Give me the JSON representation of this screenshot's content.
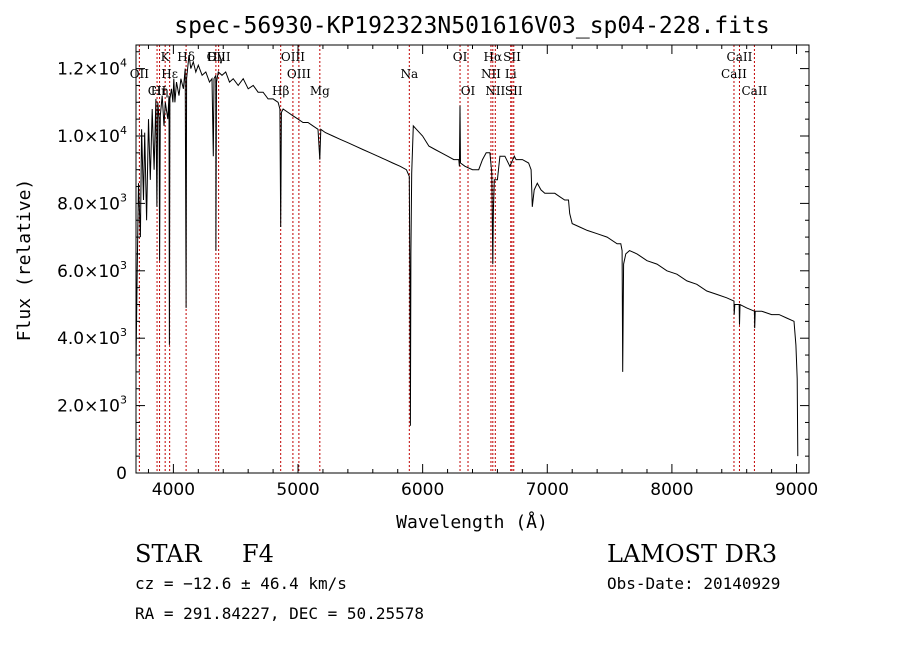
{
  "chart_data": {
    "type": "line",
    "title": "spec-56930-KP192323N501616V03_sp04-228.fits",
    "xlabel": "Wavelength (Å)",
    "ylabel": "Flux (relative)",
    "xlim": [
      3700,
      9100
    ],
    "ylim": [
      0,
      12700
    ],
    "x_ticks": [
      4000,
      5000,
      6000,
      7000,
      8000,
      9000
    ],
    "x_tick_labels": [
      "4000",
      "5000",
      "6000",
      "7000",
      "8000",
      "9000"
    ],
    "y_ticks": [
      0,
      2000,
      4000,
      6000,
      8000,
      10000,
      12000
    ],
    "y_tick_labels": [
      {
        "mant": "0",
        "exp": ""
      },
      {
        "mant": "2.0×10",
        "exp": "3"
      },
      {
        "mant": "4.0×10",
        "exp": "3"
      },
      {
        "mant": "6.0×10",
        "exp": "3"
      },
      {
        "mant": "8.0×10",
        "exp": "3"
      },
      {
        "mant": "1.0×10",
        "exp": "4"
      },
      {
        "mant": "1.2×10",
        "exp": "4"
      }
    ],
    "series": [
      {
        "name": "spectrum",
        "points": [
          [
            3700,
            3200
          ],
          [
            3710,
            6000
          ],
          [
            3720,
            8600
          ],
          [
            3735,
            7000
          ],
          [
            3745,
            10200
          ],
          [
            3760,
            8100
          ],
          [
            3770,
            10100
          ],
          [
            3785,
            7500
          ],
          [
            3800,
            10500
          ],
          [
            3815,
            8700
          ],
          [
            3830,
            10800
          ],
          [
            3845,
            9000
          ],
          [
            3860,
            11100
          ],
          [
            3868,
            7900
          ],
          [
            3875,
            11000
          ],
          [
            3885,
            10500
          ],
          [
            3889,
            6300
          ],
          [
            3895,
            10600
          ],
          [
            3910,
            11200
          ],
          [
            3925,
            10300
          ],
          [
            3935,
            11000
          ],
          [
            3955,
            10500
          ],
          [
            3965,
            11200
          ],
          [
            3968,
            3800
          ],
          [
            3972,
            11100
          ],
          [
            3985,
            11400
          ],
          [
            3996,
            11000
          ],
          [
            4003,
            11700
          ],
          [
            4012,
            11000
          ],
          [
            4025,
            11600
          ],
          [
            4045,
            11200
          ],
          [
            4060,
            11700
          ],
          [
            4080,
            11400
          ],
          [
            4095,
            12000
          ],
          [
            4102,
            4900
          ],
          [
            4106,
            11700
          ],
          [
            4125,
            12400
          ],
          [
            4140,
            12000
          ],
          [
            4160,
            12200
          ],
          [
            4180,
            11900
          ],
          [
            4200,
            12100
          ],
          [
            4230,
            11800
          ],
          [
            4260,
            11900
          ],
          [
            4290,
            11600
          ],
          [
            4310,
            11700
          ],
          [
            4320,
            9400
          ],
          [
            4326,
            11700
          ],
          [
            4340,
            11800
          ],
          [
            4341,
            6600
          ],
          [
            4346,
            11600
          ],
          [
            4360,
            11900
          ],
          [
            4390,
            11800
          ],
          [
            4420,
            11900
          ],
          [
            4450,
            11600
          ],
          [
            4480,
            11700
          ],
          [
            4520,
            11500
          ],
          [
            4560,
            11700
          ],
          [
            4600,
            11400
          ],
          [
            4640,
            11500
          ],
          [
            4680,
            11300
          ],
          [
            4720,
            11300
          ],
          [
            4760,
            11100
          ],
          [
            4800,
            11100
          ],
          [
            4840,
            11000
          ],
          [
            4855,
            10800
          ],
          [
            4861,
            7300
          ],
          [
            4867,
            10700
          ],
          [
            4880,
            10800
          ],
          [
            4920,
            10700
          ],
          [
            4960,
            10600
          ],
          [
            5000,
            10500
          ],
          [
            5040,
            10400
          ],
          [
            5080,
            10400
          ],
          [
            5120,
            10300
          ],
          [
            5160,
            10200
          ],
          [
            5175,
            9300
          ],
          [
            5183,
            10200
          ],
          [
            5220,
            10100
          ],
          [
            5280,
            10000
          ],
          [
            5340,
            9900
          ],
          [
            5400,
            9800
          ],
          [
            5460,
            9700
          ],
          [
            5520,
            9600
          ],
          [
            5580,
            9500
          ],
          [
            5640,
            9400
          ],
          [
            5700,
            9300
          ],
          [
            5760,
            9200
          ],
          [
            5820,
            9100
          ],
          [
            5870,
            9000
          ],
          [
            5893,
            8800
          ],
          [
            5898,
            5700
          ],
          [
            5902,
            1400
          ],
          [
            5906,
            6500
          ],
          [
            5912,
            8900
          ],
          [
            5925,
            10300
          ],
          [
            5950,
            10200
          ],
          [
            6000,
            10000
          ],
          [
            6050,
            9700
          ],
          [
            6100,
            9600
          ],
          [
            6150,
            9500
          ],
          [
            6200,
            9400
          ],
          [
            6250,
            9300
          ],
          [
            6290,
            9300
          ],
          [
            6295,
            9100
          ],
          [
            6300,
            10900
          ],
          [
            6304,
            9200
          ],
          [
            6340,
            9100
          ],
          [
            6400,
            9000
          ],
          [
            6450,
            9000
          ],
          [
            6480,
            9300
          ],
          [
            6510,
            9500
          ],
          [
            6540,
            9500
          ],
          [
            6555,
            8900
          ],
          [
            6563,
            6200
          ],
          [
            6568,
            7800
          ],
          [
            6575,
            8700
          ],
          [
            6600,
            8700
          ],
          [
            6620,
            9400
          ],
          [
            6660,
            9400
          ],
          [
            6700,
            9100
          ],
          [
            6735,
            9400
          ],
          [
            6750,
            9300
          ],
          [
            6800,
            9300
          ],
          [
            6850,
            9200
          ],
          [
            6870,
            9000
          ],
          [
            6880,
            7900
          ],
          [
            6895,
            8400
          ],
          [
            6920,
            8600
          ],
          [
            6950,
            8400
          ],
          [
            6980,
            8300
          ],
          [
            7020,
            8300
          ],
          [
            7060,
            8300
          ],
          [
            7100,
            8200
          ],
          [
            7140,
            8100
          ],
          [
            7170,
            8100
          ],
          [
            7180,
            7700
          ],
          [
            7200,
            7400
          ],
          [
            7260,
            7300
          ],
          [
            7320,
            7200
          ],
          [
            7400,
            7100
          ],
          [
            7480,
            7000
          ],
          [
            7560,
            6800
          ],
          [
            7590,
            6800
          ],
          [
            7600,
            6600
          ],
          [
            7605,
            3000
          ],
          [
            7612,
            6200
          ],
          [
            7630,
            6500
          ],
          [
            7660,
            6600
          ],
          [
            7720,
            6500
          ],
          [
            7800,
            6300
          ],
          [
            7880,
            6200
          ],
          [
            7960,
            6000
          ],
          [
            8040,
            5900
          ],
          [
            8120,
            5700
          ],
          [
            8200,
            5600
          ],
          [
            8280,
            5400
          ],
          [
            8360,
            5300
          ],
          [
            8440,
            5200
          ],
          [
            8498,
            5100
          ],
          [
            8500,
            4700
          ],
          [
            8505,
            5000
          ],
          [
            8540,
            5000
          ],
          [
            8542,
            4400
          ],
          [
            8546,
            5000
          ],
          [
            8600,
            4900
          ],
          [
            8662,
            4800
          ],
          [
            8664,
            4300
          ],
          [
            8668,
            4800
          ],
          [
            8720,
            4800
          ],
          [
            8800,
            4700
          ],
          [
            8860,
            4700
          ],
          [
            8920,
            4600
          ],
          [
            8980,
            4500
          ],
          [
            8995,
            3800
          ],
          [
            9005,
            2800
          ],
          [
            9010,
            500
          ]
        ]
      }
    ],
    "lines": [
      {
        "name": "Hδ",
        "wave": 4102,
        "row": 1
      },
      {
        "name": "K",
        "wave": 3934,
        "row": 1
      },
      {
        "name": "Hγ",
        "wave": 4341,
        "row": 1
      },
      {
        "name": "OIII",
        "wave": 4363,
        "row": 1
      },
      {
        "name": "OII",
        "wave": 3727,
        "row": 2
      },
      {
        "name": "Hε",
        "wave": 3970,
        "row": 2
      },
      {
        "name": "CII",
        "wave": 3869,
        "row": 3
      },
      {
        "name": "Hη",
        "wave": 3889,
        "row": 3
      },
      {
        "name": "OIII",
        "wave": 4959,
        "row": 1
      },
      {
        "name": "OIII",
        "wave": 5007,
        "row": 2
      },
      {
        "name": "Hβ",
        "wave": 4861,
        "row": 3
      },
      {
        "name": "Mg",
        "wave": 5175,
        "row": 3
      },
      {
        "name": "Na",
        "wave": 5893,
        "row": 2
      },
      {
        "name": "OI",
        "wave": 6300,
        "row": 1
      },
      {
        "name": "OI",
        "wave": 6364,
        "row": 3
      },
      {
        "name": "Hα",
        "wave": 6563,
        "row": 1
      },
      {
        "name": "SII",
        "wave": 6717,
        "row": 1
      },
      {
        "name": "NII",
        "wave": 6548,
        "row": 2
      },
      {
        "name": "Li",
        "wave": 6707,
        "row": 2
      },
      {
        "name": "NII",
        "wave": 6583,
        "row": 3
      },
      {
        "name": "SII",
        "wave": 6731,
        "row": 3
      },
      {
        "name": "CaII",
        "wave": 8542,
        "row": 1
      },
      {
        "name": "CaII",
        "wave": 8498,
        "row": 2
      },
      {
        "name": "CaII",
        "wave": 8662,
        "row": 3
      }
    ]
  },
  "info": {
    "class_label": "STAR",
    "subclass": "F4",
    "survey": "LAMOST DR3",
    "cz": "cz = −12.6 ± 46.4 km/s",
    "obs_date": "Obs-Date: 20140929",
    "radec": "RA = 291.84227, DEC =  50.25578"
  }
}
